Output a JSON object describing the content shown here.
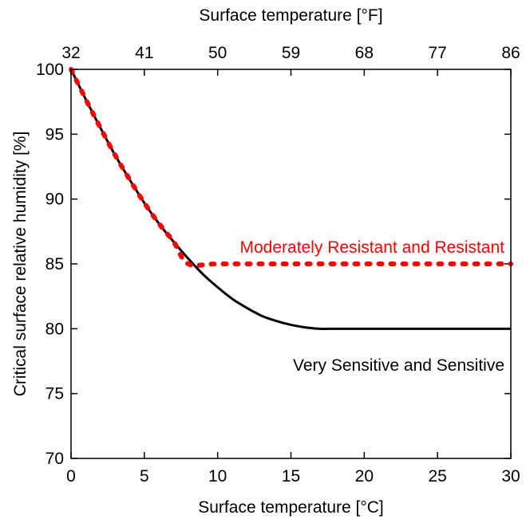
{
  "chart_data": {
    "type": "line",
    "title": "",
    "xlabel": "Surface temperature [°C]",
    "ylabel": "Critical surface relative humidity [%]",
    "x2label": "Surface temperature [°F]",
    "xlim": [
      0,
      30
    ],
    "ylim": [
      70,
      100
    ],
    "xticks": [
      0,
      5,
      10,
      15,
      20,
      25,
      30
    ],
    "yticks": [
      70,
      75,
      80,
      85,
      90,
      95,
      100
    ],
    "x2ticks": [
      32,
      41,
      50,
      59,
      68,
      77,
      86
    ],
    "grid": false,
    "series": [
      {
        "name": "Very Sensitive and Sensitive",
        "color": "#000000",
        "style": "solid",
        "x": [
          0,
          1,
          2,
          3,
          4,
          5,
          6,
          7,
          8,
          9,
          10,
          11,
          12,
          13,
          14,
          15,
          16,
          17,
          18,
          19,
          20,
          22,
          24,
          26,
          28,
          30
        ],
        "y": [
          100,
          97.7,
          95.5,
          93.4,
          91.5,
          89.7,
          88.1,
          86.7,
          85.4,
          84.2,
          83.2,
          82.3,
          81.6,
          81.0,
          80.6,
          80.3,
          80.1,
          80.0,
          80.0,
          80.0,
          80.0,
          80.0,
          80.0,
          80.0,
          80.0,
          80.0
        ]
      },
      {
        "name": "Moderately Resistant and Resistant",
        "color": "#ff0000",
        "style": "dotted",
        "x": [
          0,
          1,
          2,
          3,
          4,
          5,
          6,
          7,
          8,
          10,
          15,
          20,
          25,
          30
        ],
        "y": [
          100,
          97.7,
          95.5,
          93.4,
          91.5,
          89.7,
          88.1,
          86.7,
          85.0,
          85.0,
          85.0,
          85.0,
          85.0,
          85.0
        ]
      }
    ],
    "annotations": [
      {
        "text": "Moderately Resistant and Resistant",
        "x": 30,
        "y": 86.3,
        "color": "#ff0000"
      },
      {
        "text": "Very Sensitive and Sensitive",
        "x": 30,
        "y": 77.2,
        "color": "#000000"
      }
    ]
  }
}
